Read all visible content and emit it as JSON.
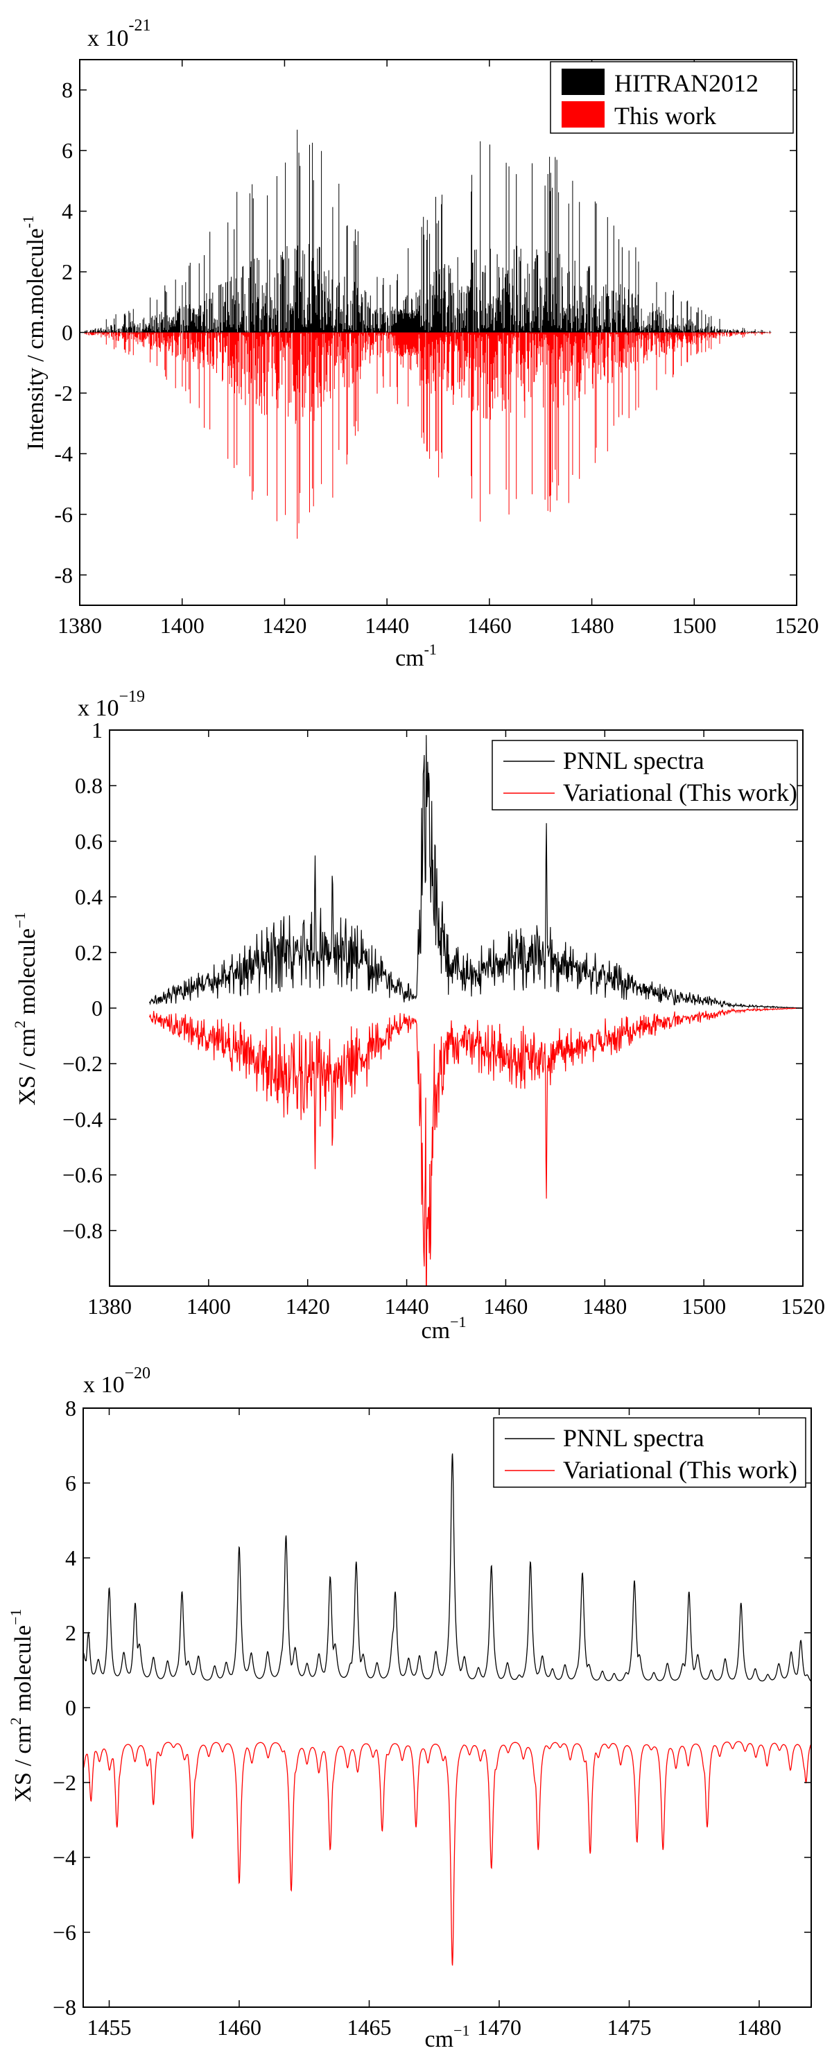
{
  "charts": [
    {
      "type": "stem",
      "exponent_prefix": "x 10",
      "exponent": "-21",
      "xlim": [
        1380,
        1520
      ],
      "ylim": [
        -9,
        9
      ],
      "x_ticks": [
        "1380",
        "1400",
        "1420",
        "1440",
        "1460",
        "1480",
        "1500",
        "1520"
      ],
      "y_ticks": [
        "-8",
        "-6",
        "-4",
        "-2",
        "0",
        "2",
        "4",
        "6",
        "8"
      ],
      "x_ticks_v": [
        1380,
        1400,
        1420,
        1440,
        1460,
        1480,
        1500,
        1520
      ],
      "y_ticks_v": [
        -8,
        -6,
        -4,
        -2,
        0,
        2,
        4,
        6,
        8
      ],
      "xlabel_base": "cm",
      "xlabel_sup": "-1",
      "ylabel_base": "Intensity / cm.molecule",
      "ylabel_sup": "-1",
      "legend_position": "top-right",
      "legend": [
        {
          "label": "HITRAN2012",
          "color": "#000000",
          "style": "patch"
        },
        {
          "label": "This work",
          "color": "#ff0000",
          "style": "patch"
        }
      ],
      "series": [
        {
          "name": "HITRAN2012",
          "color": "#000000",
          "sign": 1,
          "envelope_x": [
            1381,
            1390,
            1400,
            1408,
            1414,
            1420,
            1424,
            1428,
            1432,
            1436,
            1440,
            1442,
            1446,
            1452,
            1458,
            1464,
            1470,
            1476,
            1482,
            1488,
            1494,
            1500,
            1506,
            1510,
            1515
          ],
          "envelope_y": [
            0.2,
            0.8,
            2.0,
            4.0,
            5.5,
            6.5,
            6.9,
            6.0,
            4.5,
            3.0,
            1.6,
            2.2,
            3.6,
            5.2,
            6.3,
            6.6,
            6.3,
            5.6,
            4.4,
            3.0,
            1.8,
            0.9,
            0.4,
            0.15,
            0.05
          ]
        },
        {
          "name": "This work",
          "color": "#ff0000",
          "sign": -1,
          "envelope_x": [
            1381,
            1390,
            1400,
            1408,
            1414,
            1420,
            1424,
            1428,
            1432,
            1436,
            1440,
            1442,
            1446,
            1452,
            1458,
            1464,
            1470,
            1476,
            1482,
            1488,
            1494,
            1500,
            1506,
            1510,
            1515
          ],
          "envelope_y": [
            0.2,
            0.8,
            2.0,
            4.2,
            5.8,
            6.6,
            7.0,
            6.2,
            4.6,
            3.0,
            1.6,
            2.4,
            3.9,
            5.4,
            6.4,
            6.6,
            6.3,
            5.6,
            4.4,
            3.0,
            1.8,
            0.9,
            0.4,
            0.15,
            0.05
          ]
        }
      ]
    },
    {
      "type": "line",
      "exponent_prefix": "x 10",
      "exponent": "−19",
      "xlim": [
        1380,
        1520
      ],
      "ylim": [
        -1,
        1
      ],
      "x_ticks": [
        "1380",
        "1400",
        "1420",
        "1440",
        "1460",
        "1480",
        "1500",
        "1520"
      ],
      "y_ticks": [
        "−0.8",
        "−0.6",
        "−0.4",
        "−0.2",
        "0",
        "0.2",
        "0.4",
        "0.6",
        "0.8",
        "1"
      ],
      "x_ticks_v": [
        1380,
        1400,
        1420,
        1440,
        1460,
        1480,
        1500,
        1520
      ],
      "y_ticks_v": [
        -0.8,
        -0.6,
        -0.4,
        -0.2,
        0,
        0.2,
        0.4,
        0.6,
        0.8,
        1
      ],
      "xlabel_base": "cm",
      "xlabel_sup": "−1",
      "ylabel_base": "XS / cm",
      "ylabel_sup": "2",
      "ylabel_rest": " molecule",
      "ylabel_sup2": "−1",
      "legend_position": "top-right",
      "legend": [
        {
          "label": "PNNL spectra",
          "color": "#000000",
          "style": "line"
        },
        {
          "label": "Variational (This work)",
          "color": "#ff0000",
          "style": "line"
        }
      ],
      "series": [
        {
          "name": "PNNL spectra",
          "color": "#000000",
          "sign": 1,
          "baseline_x": [
            1388,
            1395,
            1402,
            1410,
            1416,
            1422,
            1428,
            1434,
            1438,
            1442,
            1443,
            1444,
            1446,
            1448,
            1452,
            1458,
            1464,
            1470,
            1476,
            1482,
            1488,
            1494,
            1500,
            1506,
            1512,
            1520
          ],
          "baseline_y": [
            0.02,
            0.06,
            0.1,
            0.16,
            0.2,
            0.22,
            0.2,
            0.14,
            0.07,
            0.04,
            0.5,
            0.6,
            0.35,
            0.16,
            0.12,
            0.15,
            0.18,
            0.17,
            0.13,
            0.1,
            0.07,
            0.04,
            0.03,
            0.01,
            0.005,
            0.0
          ],
          "amplitude_scale": 0.7,
          "peaks": [
            [
              1443.5,
              0.96
            ],
            [
              1444.5,
              0.9
            ],
            [
              1468.2,
              0.67
            ],
            [
              1421.5,
              0.55
            ],
            [
              1425,
              0.5
            ]
          ]
        },
        {
          "name": "Variational (This work)",
          "color": "#ff0000",
          "sign": -1,
          "baseline_x": [
            1388,
            1395,
            1402,
            1410,
            1416,
            1422,
            1428,
            1434,
            1438,
            1442,
            1443,
            1444,
            1446,
            1448,
            1452,
            1458,
            1464,
            1470,
            1476,
            1482,
            1488,
            1494,
            1500,
            1506,
            1512,
            1520
          ],
          "baseline_y": [
            0.03,
            0.07,
            0.12,
            0.18,
            0.24,
            0.26,
            0.22,
            0.14,
            0.06,
            0.05,
            0.6,
            0.7,
            0.3,
            0.12,
            0.12,
            0.16,
            0.18,
            0.16,
            0.13,
            0.1,
            0.07,
            0.04,
            0.03,
            0.01,
            0.005,
            0.0
          ],
          "amplitude_scale": 0.7,
          "peaks": [
            [
              1443.5,
              0.98
            ],
            [
              1444.8,
              0.95
            ],
            [
              1468.2,
              0.69
            ],
            [
              1421.5,
              0.58
            ],
            [
              1425,
              0.52
            ]
          ]
        }
      ]
    },
    {
      "type": "line",
      "exponent_prefix": "x 10",
      "exponent": "−20",
      "xlim": [
        1454,
        1482
      ],
      "ylim": [
        -8,
        8
      ],
      "x_ticks": [
        "1455",
        "1460",
        "1465",
        "1470",
        "1475",
        "1480"
      ],
      "y_ticks": [
        "−8",
        "−6",
        "−4",
        "−2",
        "0",
        "2",
        "4",
        "6",
        "8"
      ],
      "x_ticks_v": [
        1455,
        1460,
        1465,
        1470,
        1475,
        1480
      ],
      "y_ticks_v": [
        -8,
        -6,
        -4,
        -2,
        0,
        2,
        4,
        6,
        8
      ],
      "xlabel_base": "cm",
      "xlabel_sup": "−1",
      "ylabel_base": "XS / cm",
      "ylabel_sup": "2",
      "ylabel_rest": " molecule",
      "ylabel_sup2": "−1",
      "legend_position": "top-right",
      "legend": [
        {
          "label": "PNNL spectra",
          "color": "#000000",
          "style": "line"
        },
        {
          "label": "Variational (This work)",
          "color": "#ff0000",
          "style": "line"
        }
      ],
      "series": [
        {
          "name": "PNNL spectra",
          "color": "#000000",
          "sign": 1,
          "offset": 0.6,
          "peaks": [
            [
              1454.2,
              2.0
            ],
            [
              1455.0,
              3.2
            ],
            [
              1456.0,
              2.8
            ],
            [
              1457.8,
              3.1
            ],
            [
              1460.0,
              4.3
            ],
            [
              1461.8,
              4.6
            ],
            [
              1463.5,
              3.5
            ],
            [
              1464.5,
              3.9
            ],
            [
              1466.0,
              3.1
            ],
            [
              1468.2,
              6.8
            ],
            [
              1469.7,
              3.8
            ],
            [
              1471.2,
              3.9
            ],
            [
              1473.2,
              3.6
            ],
            [
              1475.2,
              3.4
            ],
            [
              1477.3,
              3.1
            ],
            [
              1479.3,
              2.8
            ],
            [
              1481.6,
              1.8
            ]
          ]
        },
        {
          "name": "Variational (This work)",
          "color": "#ff0000",
          "sign": -1,
          "offset": 0.8,
          "peaks": [
            [
              1454.3,
              2.5
            ],
            [
              1455.3,
              3.2
            ],
            [
              1456.7,
              2.6
            ],
            [
              1458.2,
              3.5
            ],
            [
              1460.0,
              4.7
            ],
            [
              1462.0,
              4.9
            ],
            [
              1463.5,
              3.8
            ],
            [
              1465.5,
              3.3
            ],
            [
              1466.8,
              3.2
            ],
            [
              1468.2,
              6.9
            ],
            [
              1469.7,
              4.3
            ],
            [
              1471.5,
              3.8
            ],
            [
              1473.5,
              3.9
            ],
            [
              1475.3,
              3.6
            ],
            [
              1476.3,
              3.8
            ],
            [
              1478.0,
              3.2
            ],
            [
              1481.8,
              2.0
            ]
          ]
        }
      ]
    }
  ],
  "chart_data": [
    {
      "type": "bar",
      "title": "",
      "xlabel": "cm-1",
      "ylabel": "Intensity / cm.molecule-1",
      "xlim": [
        1380,
        1520
      ],
      "ylim": [
        -9,
        9
      ],
      "y_scale": "x 10^-21",
      "series": [
        {
          "name": "HITRAN2012",
          "note": "upward stick lines",
          "envelope_max": 6.9
        },
        {
          "name": "This work",
          "note": "plotted negative (mirror)",
          "envelope_max": -7.0
        }
      ]
    },
    {
      "type": "line",
      "title": "",
      "xlabel": "cm−1",
      "ylabel": "XS / cm2 molecule−1",
      "xlim": [
        1380,
        1520
      ],
      "ylim": [
        -1,
        1
      ],
      "y_scale": "x 10^−19",
      "series": [
        {
          "name": "PNNL spectra",
          "x": [
            1388,
            1421.5,
            1443.5,
            1468.2,
            1520
          ],
          "y": [
            0.02,
            0.55,
            0.96,
            0.67,
            0.0
          ]
        },
        {
          "name": "Variational (This work)",
          "x": [
            1388,
            1421.5,
            1443.5,
            1468.2,
            1520
          ],
          "y": [
            -0.03,
            -0.58,
            -0.98,
            -0.69,
            0.0
          ]
        }
      ]
    },
    {
      "type": "line",
      "title": "",
      "xlabel": "cm−1",
      "ylabel": "XS / cm2 molecule−1",
      "xlim": [
        1454,
        1482
      ],
      "ylim": [
        -8,
        8
      ],
      "y_scale": "x 10^−20",
      "series": [
        {
          "name": "PNNL spectra",
          "x": [
            1455.0,
            1460.0,
            1461.8,
            1468.2,
            1471.2,
            1475.2
          ],
          "y": [
            3.2,
            4.3,
            4.6,
            6.8,
            3.9,
            3.4
          ]
        },
        {
          "name": "Variational (This work)",
          "x": [
            1455.3,
            1460.0,
            1462.0,
            1468.2,
            1469.7,
            1473.5
          ],
          "y": [
            -3.2,
            -4.7,
            -4.9,
            -6.9,
            -4.3,
            -3.9
          ]
        }
      ]
    }
  ]
}
